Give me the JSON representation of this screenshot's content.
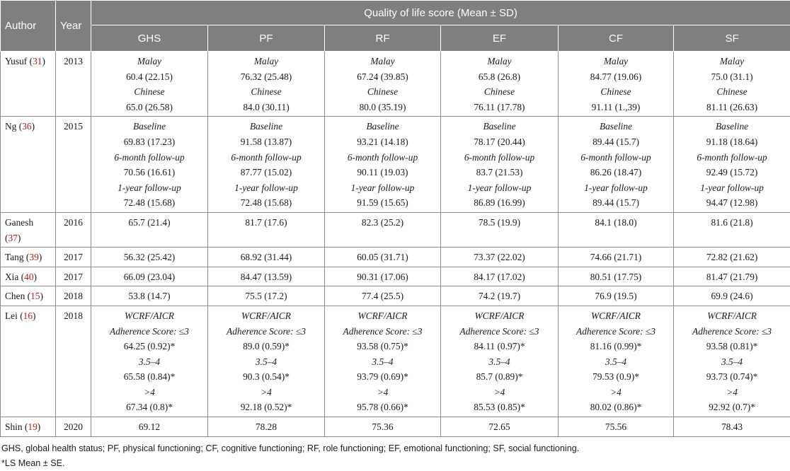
{
  "table": {
    "col_author": "Author",
    "col_year": "Year",
    "group_header": "Quality of life score (Mean ± SD)",
    "subcols": [
      "GHS",
      "PF",
      "RF",
      "EF",
      "CF",
      "SF"
    ],
    "rows": [
      {
        "author": "Yusuf",
        "ref": "31",
        "year": "2013",
        "cells": [
          [
            {
              "t": "label",
              "v": "Malay"
            },
            {
              "t": "val",
              "v": "60.4 (22.15)"
            },
            {
              "t": "label",
              "v": "Chinese"
            },
            {
              "t": "val",
              "v": "65.0 (26.58)"
            }
          ],
          [
            {
              "t": "label",
              "v": "Malay"
            },
            {
              "t": "val",
              "v": "76.32 (25.48)"
            },
            {
              "t": "label",
              "v": "Chinese"
            },
            {
              "t": "val",
              "v": "84.0 (30.11)"
            }
          ],
          [
            {
              "t": "label",
              "v": "Malay"
            },
            {
              "t": "val",
              "v": "67.24 (39.85)"
            },
            {
              "t": "label",
              "v": "Chinese"
            },
            {
              "t": "val",
              "v": "80.0 (35.19)"
            }
          ],
          [
            {
              "t": "label",
              "v": "Malay"
            },
            {
              "t": "val",
              "v": "65.8 (26.8)"
            },
            {
              "t": "label",
              "v": "Chinese"
            },
            {
              "t": "val",
              "v": "76.11 (17.78)"
            }
          ],
          [
            {
              "t": "label",
              "v": "Malay"
            },
            {
              "t": "val",
              "v": "84.77 (19.06)"
            },
            {
              "t": "label",
              "v": "Chinese"
            },
            {
              "t": "val",
              "v": "91.11 (1.,39)"
            }
          ],
          [
            {
              "t": "label",
              "v": "Malay"
            },
            {
              "t": "val",
              "v": "75.0 (31.1)"
            },
            {
              "t": "label",
              "v": "Chinese"
            },
            {
              "t": "val",
              "v": "81.11 (26.63)"
            }
          ]
        ]
      },
      {
        "author": "Ng",
        "ref": "36",
        "year": "2015",
        "cells": [
          [
            {
              "t": "label",
              "v": "Baseline"
            },
            {
              "t": "val",
              "v": "69.83 (17.23)"
            },
            {
              "t": "label",
              "v": "6-month follow-up"
            },
            {
              "t": "val",
              "v": "70.56 (16.61)"
            },
            {
              "t": "label",
              "v": "1-year follow-up"
            },
            {
              "t": "val",
              "v": "72.48 (15.68)"
            }
          ],
          [
            {
              "t": "label",
              "v": "Baseline"
            },
            {
              "t": "val",
              "v": "91.58 (13.87)"
            },
            {
              "t": "label",
              "v": "6-month follow-up"
            },
            {
              "t": "val",
              "v": "87.77 (15.02)"
            },
            {
              "t": "label",
              "v": "1-year follow-up"
            },
            {
              "t": "val",
              "v": "72.48 (15.68)"
            }
          ],
          [
            {
              "t": "label",
              "v": "Baseline"
            },
            {
              "t": "val",
              "v": "93.21 (14.18)"
            },
            {
              "t": "label",
              "v": "6-month follow-up"
            },
            {
              "t": "val",
              "v": "90.11 (19.03)"
            },
            {
              "t": "label",
              "v": "1-year follow-up"
            },
            {
              "t": "val",
              "v": "91.59 (15.65)"
            }
          ],
          [
            {
              "t": "label",
              "v": "Baseline"
            },
            {
              "t": "val",
              "v": "78.17 (20.44)"
            },
            {
              "t": "label",
              "v": "6-month follow-up"
            },
            {
              "t": "val",
              "v": "83.7 (21.53)"
            },
            {
              "t": "label",
              "v": "1-year follow-up"
            },
            {
              "t": "val",
              "v": "86.89 (16.99)"
            }
          ],
          [
            {
              "t": "label",
              "v": "Baseline"
            },
            {
              "t": "val",
              "v": "89.44 (15.7)"
            },
            {
              "t": "label",
              "v": "6-month follow-up"
            },
            {
              "t": "val",
              "v": "86.26 (18.47)"
            },
            {
              "t": "label",
              "v": "1-year follow-up"
            },
            {
              "t": "val",
              "v": "89.44 (15.7)"
            }
          ],
          [
            {
              "t": "label",
              "v": "Baseline"
            },
            {
              "t": "val",
              "v": "91.18 (18.64)"
            },
            {
              "t": "label",
              "v": "6-month follow-up"
            },
            {
              "t": "val",
              "v": "92.49 (15.72)"
            },
            {
              "t": "label",
              "v": "1-year follow-up"
            },
            {
              "t": "val",
              "v": "94.47 (12.98)"
            }
          ]
        ]
      },
      {
        "author": "Ganesh",
        "ref": "37",
        "year": "2016",
        "cells": [
          [
            {
              "t": "val",
              "v": "65.7 (21.4)"
            }
          ],
          [
            {
              "t": "val",
              "v": "81.7 (17.6)"
            }
          ],
          [
            {
              "t": "val",
              "v": "82.3 (25.2)"
            }
          ],
          [
            {
              "t": "val",
              "v": "78.5 (19.9)"
            }
          ],
          [
            {
              "t": "val",
              "v": "84.1 (18.0)"
            }
          ],
          [
            {
              "t": "val",
              "v": "81.6 (21.8)"
            }
          ]
        ]
      },
      {
        "author": "Tang",
        "ref": "39",
        "year": "2017",
        "cells": [
          [
            {
              "t": "val",
              "v": "56.32 (25.42)"
            }
          ],
          [
            {
              "t": "val",
              "v": "68.92 (31.44)"
            }
          ],
          [
            {
              "t": "val",
              "v": "60.05 (31.71)"
            }
          ],
          [
            {
              "t": "val",
              "v": "73.37 (22.02)"
            }
          ],
          [
            {
              "t": "val",
              "v": "74.66 (21.71)"
            }
          ],
          [
            {
              "t": "val",
              "v": "72.82 (21.62)"
            }
          ]
        ]
      },
      {
        "author": "Xia",
        "ref": "40",
        "year": "2017",
        "cells": [
          [
            {
              "t": "val",
              "v": "66.09 (23.04)"
            }
          ],
          [
            {
              "t": "val",
              "v": "84.47 (13.59)"
            }
          ],
          [
            {
              "t": "val",
              "v": "90.31 (17.06)"
            }
          ],
          [
            {
              "t": "val",
              "v": "84.17 (17.02)"
            }
          ],
          [
            {
              "t": "val",
              "v": "80.51 (17.75)"
            }
          ],
          [
            {
              "t": "val",
              "v": "81.47 (21.79)"
            }
          ]
        ]
      },
      {
        "author": "Chen",
        "ref": "15",
        "year": "2018",
        "cells": [
          [
            {
              "t": "val",
              "v": "53.8 (14.7)"
            }
          ],
          [
            {
              "t": "val",
              "v": "75.5 (17.2)"
            }
          ],
          [
            {
              "t": "val",
              "v": "77.4 (25.5)"
            }
          ],
          [
            {
              "t": "val",
              "v": "74.2 (19.7)"
            }
          ],
          [
            {
              "t": "val",
              "v": "76.9 (19.5)"
            }
          ],
          [
            {
              "t": "val",
              "v": "69.9 (24.6)"
            }
          ]
        ]
      },
      {
        "author": "Lei",
        "ref": "16",
        "year": "2018",
        "cells": [
          [
            {
              "t": "label",
              "v": "WCRF/AICR"
            },
            {
              "t": "label",
              "v": "Adherence Score: ≤3"
            },
            {
              "t": "val",
              "v": "64.25 (0.92)*"
            },
            {
              "t": "label",
              "v": "3.5–4"
            },
            {
              "t": "val",
              "v": "65.58 (0.84)*"
            },
            {
              "t": "label",
              "v": ">4"
            },
            {
              "t": "val",
              "v": "67.34 (0.8)*"
            }
          ],
          [
            {
              "t": "label",
              "v": "WCRF/AICR"
            },
            {
              "t": "label",
              "v": "Adherence Score: ≤3"
            },
            {
              "t": "val",
              "v": "89.0 (0.59)*"
            },
            {
              "t": "label",
              "v": "3.5–4"
            },
            {
              "t": "val",
              "v": "90.3 (0.54)*"
            },
            {
              "t": "label",
              "v": ">4"
            },
            {
              "t": "val",
              "v": "92.18 (0.52)*"
            }
          ],
          [
            {
              "t": "label",
              "v": "WCRF/AICR"
            },
            {
              "t": "label",
              "v": "Adherence Score: ≤3"
            },
            {
              "t": "val",
              "v": "93.58 (0.75)*"
            },
            {
              "t": "label",
              "v": "3.5–4"
            },
            {
              "t": "val",
              "v": "93.79 (0.69)*"
            },
            {
              "t": "label",
              "v": ">4"
            },
            {
              "t": "val",
              "v": "95.78 (0.66)*"
            }
          ],
          [
            {
              "t": "label",
              "v": "WCRF/AICR"
            },
            {
              "t": "label",
              "v": "Adherence Score: ≤3"
            },
            {
              "t": "val",
              "v": "84.11 (0.97)*"
            },
            {
              "t": "label",
              "v": "3.5–4"
            },
            {
              "t": "val",
              "v": "85.7 (0.89)*"
            },
            {
              "t": "label",
              "v": ">4"
            },
            {
              "t": "val",
              "v": "85.53 (0.85)*"
            }
          ],
          [
            {
              "t": "label",
              "v": "WCRF/AICR"
            },
            {
              "t": "label",
              "v": "Adherence Score: ≤3"
            },
            {
              "t": "val",
              "v": "81.16 (0.99)*"
            },
            {
              "t": "label",
              "v": "3.5–4"
            },
            {
              "t": "val",
              "v": "79.53 (0.9)*"
            },
            {
              "t": "label",
              "v": ">4"
            },
            {
              "t": "val",
              "v": "80.02 (0.86)*"
            }
          ],
          [
            {
              "t": "label",
              "v": "WCRF/AICR"
            },
            {
              "t": "label",
              "v": "Adherence Score: ≤3"
            },
            {
              "t": "val",
              "v": "93.58 (0.81)*"
            },
            {
              "t": "label",
              "v": "3.5–4"
            },
            {
              "t": "val",
              "v": "93.73 (0.74)*"
            },
            {
              "t": "label",
              "v": ">4"
            },
            {
              "t": "val",
              "v": "92.92 (0.7)*"
            }
          ]
        ]
      },
      {
        "author": "Shin",
        "ref": "19",
        "year": "2020",
        "cells": [
          [
            {
              "t": "val",
              "v": "69.12"
            }
          ],
          [
            {
              "t": "val",
              "v": "78.28"
            }
          ],
          [
            {
              "t": "val",
              "v": "75.36"
            }
          ],
          [
            {
              "t": "val",
              "v": "72.65"
            }
          ],
          [
            {
              "t": "val",
              "v": "75.56"
            }
          ],
          [
            {
              "t": "val",
              "v": "78.43"
            }
          ]
        ]
      }
    ]
  },
  "notes": {
    "abbreviations": "GHS, global health status; PF, physical functioning; CF, cognitive functioning; RF, role functioning; EF, emotional functioning; SF, social functioning.",
    "footnote": "*LS Mean ± SE."
  },
  "colors": {
    "header_bg": "#7f7f7f",
    "header_text": "#ffffff",
    "reference_link": "#b01c1c",
    "border": "#8c8c8c"
  }
}
